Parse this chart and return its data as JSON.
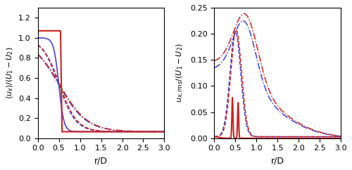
{
  "xlabel": "r/D",
  "ylabel_left": "<u_x>/(U_1 - U_2)",
  "ylabel_right": "u_{x,rms}/(U_1 - U_2)",
  "xlim": [
    0,
    3.0
  ],
  "ylim_left": [
    0,
    1.3
  ],
  "ylim_right": [
    0,
    0.25
  ],
  "colors": {
    "blue": "#4444cc",
    "red": "#cc2222"
  },
  "figsize": [
    5.0,
    2.42
  ],
  "dpi": 100
}
